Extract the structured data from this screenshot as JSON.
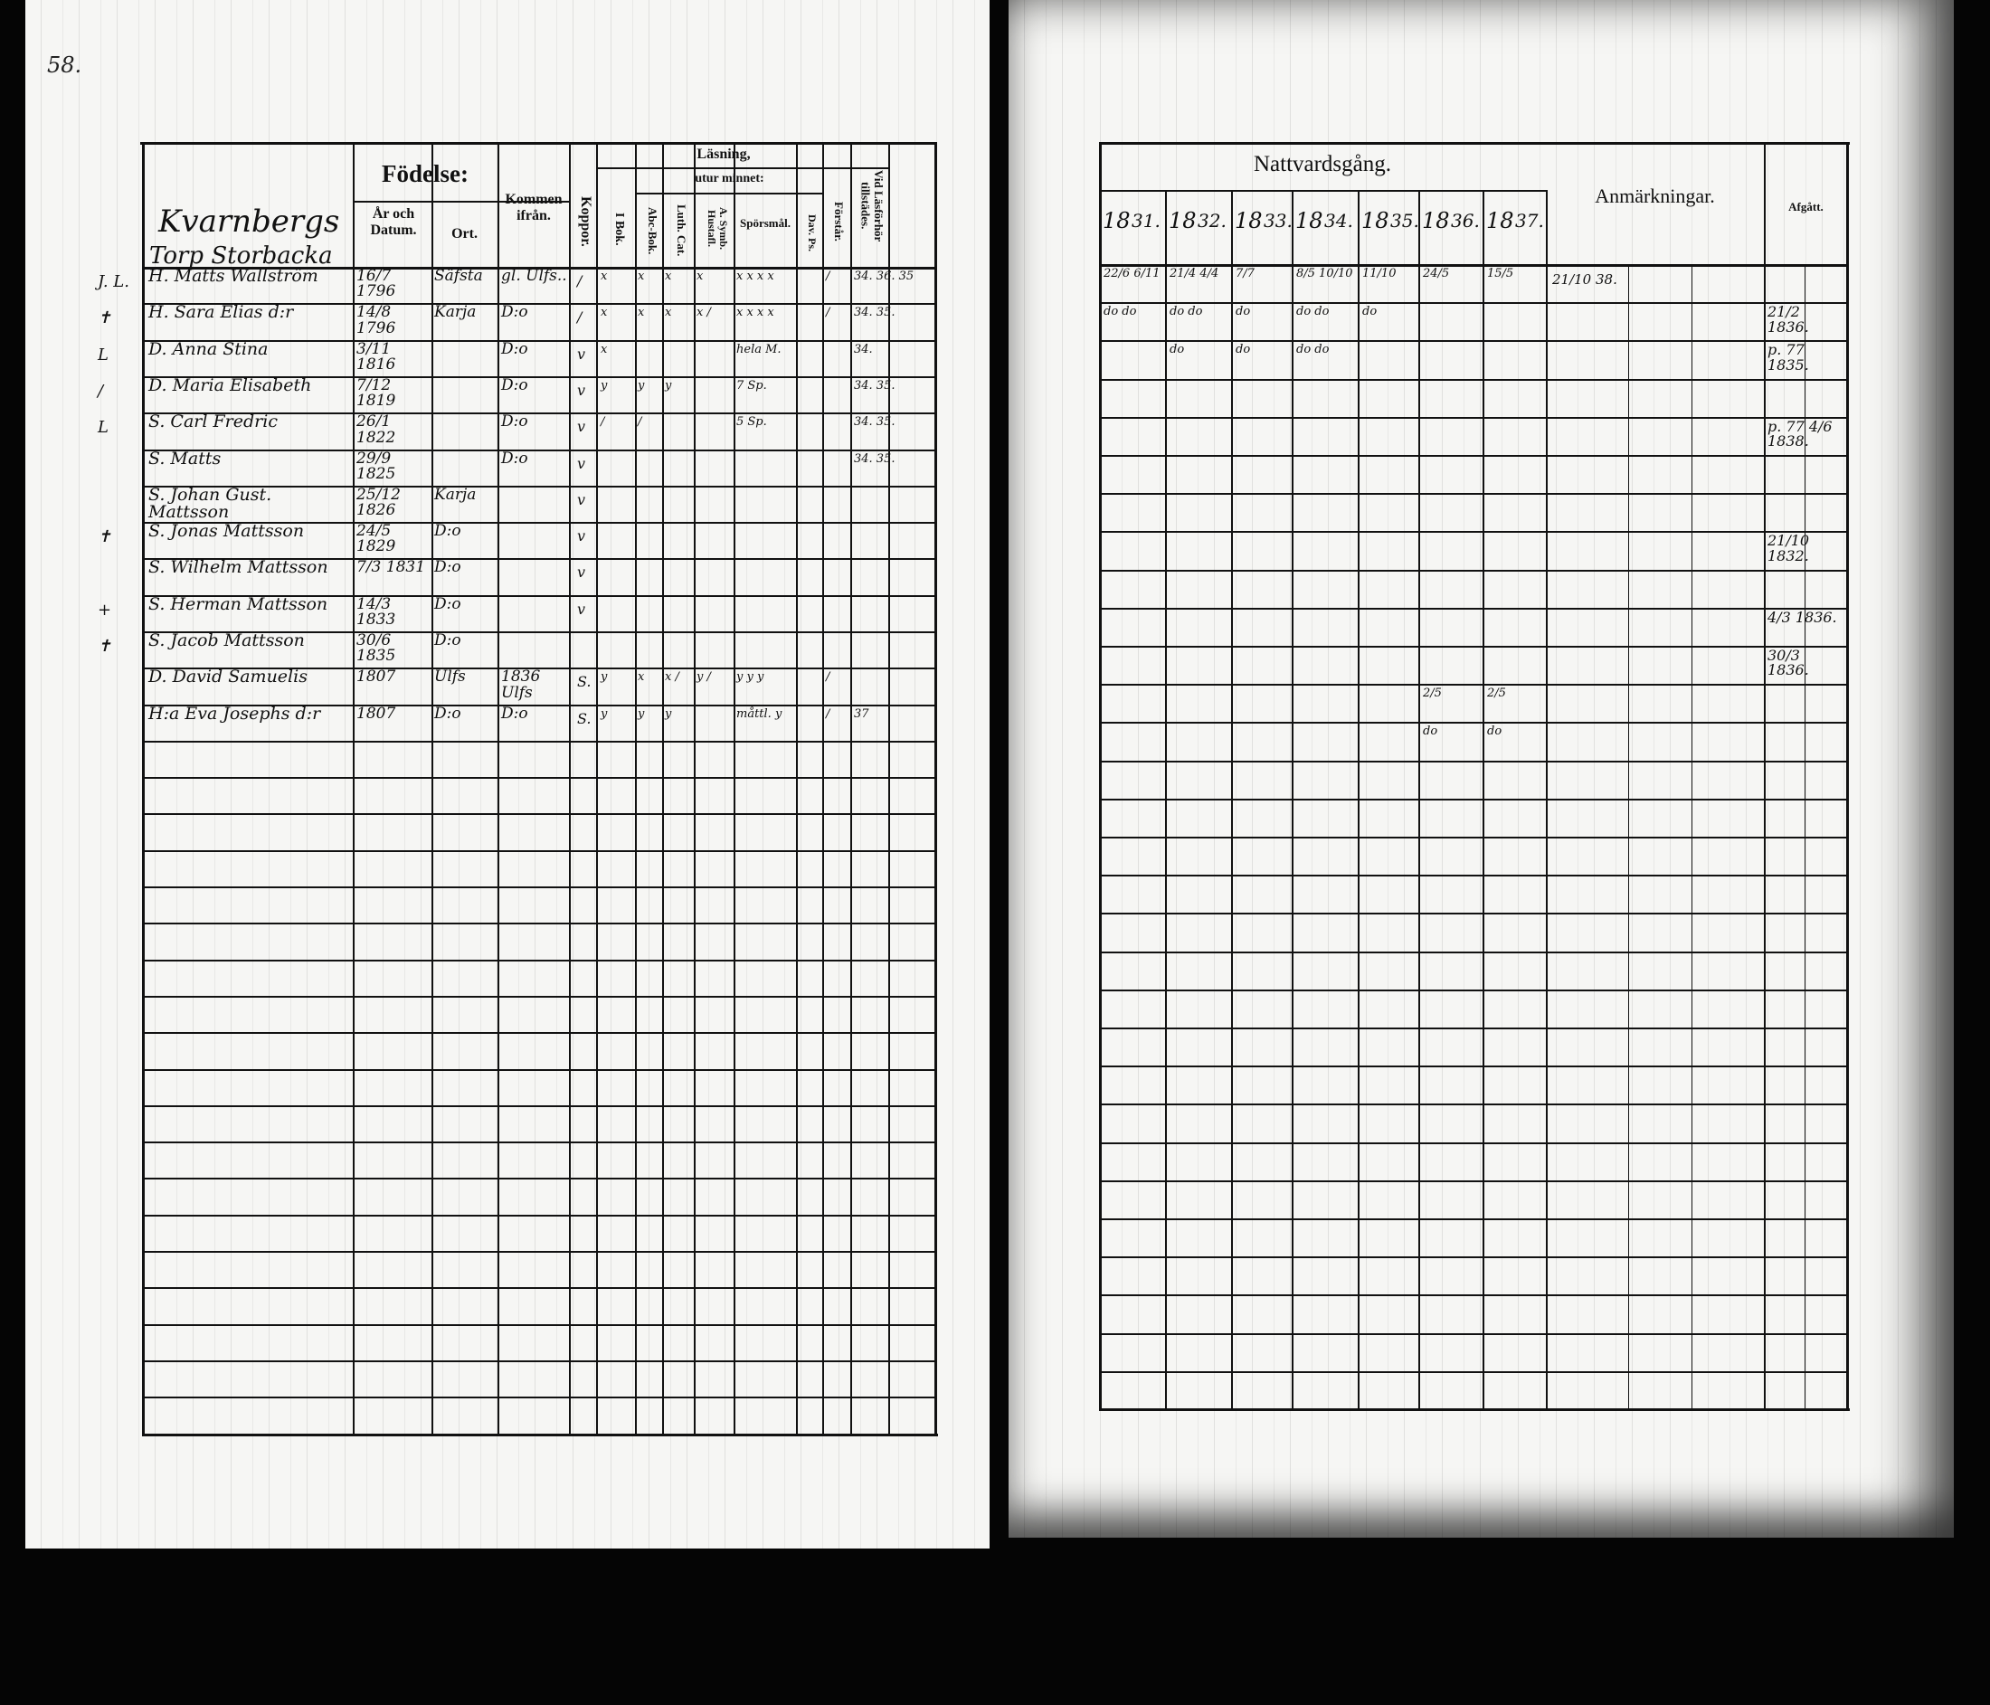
{
  "page_number": "58.",
  "left": {
    "title_line1": "Kvarnbergs",
    "title_line2": "Torp Storbacka",
    "headers": {
      "fodelse": "Födelse:",
      "ar_datum": "År och Datum.",
      "ort": "Ort.",
      "kommen": "Kommen ifrån.",
      "koppor": "Koppor.",
      "lasning": "Läsning,",
      "utur_minnet": "utur minnet:",
      "i_bok": "I Bok.",
      "abc_bok": "Abc-Bok.",
      "luth_cat": "Luth. Cat.",
      "symb": "A. Symb. Hustafl.",
      "sporsmal": "Spörsmål.",
      "dav_ps": "Dav. Ps.",
      "forstar": "Förstår.",
      "vid_lasforhor": "Vid Läsförhör tillstädes."
    },
    "rows": [
      {
        "mark": "J. L.",
        "name": "H. Matts Wallström",
        "date": "16/7 1796",
        "ort": "Säfsta",
        "from": "gl. Ulfs..",
        "koppor": "/",
        "ibok": "x",
        "abc": "x",
        "luth": "x",
        "symb": "x",
        "spors": "x x x x",
        "forst": "/",
        "vid": "34. 36. 35"
      },
      {
        "mark": "✝",
        "name": "H. Sara Elias d:r",
        "date": "14/8 1796",
        "ort": "Karja",
        "from": "D:o",
        "koppor": "/",
        "ibok": "x",
        "abc": "x",
        "luth": "x",
        "symb": "x /",
        "spors": "x x x x",
        "forst": "/",
        "vid": "34. 35."
      },
      {
        "mark": "L",
        "name": "D. Anna Stina",
        "date": "3/11 1816",
        "ort": "",
        "from": "D:o",
        "koppor": "v",
        "ibok": "x",
        "abc": "",
        "luth": "",
        "symb": "",
        "spors": "hela M.",
        "forst": "",
        "vid": "34."
      },
      {
        "mark": "/",
        "name": "D. Maria Elisabeth",
        "date": "7/12 1819",
        "ort": "",
        "from": "D:o",
        "koppor": "v",
        "ibok": "y",
        "abc": "y",
        "luth": "y",
        "symb": "",
        "spors": "7 Sp.",
        "forst": "",
        "vid": "34. 35."
      },
      {
        "mark": "L",
        "name": "S. Carl Fredric",
        "date": "26/1 1822",
        "ort": "",
        "from": "D:o",
        "koppor": "v",
        "ibok": "/",
        "abc": "/",
        "luth": "",
        "symb": "",
        "spors": "5 Sp.",
        "forst": "",
        "vid": "34. 35."
      },
      {
        "mark": "",
        "name": "S. Matts",
        "date": "29/9 1825",
        "ort": "",
        "from": "D:o",
        "koppor": "v",
        "ibok": "",
        "abc": "",
        "luth": "",
        "symb": "",
        "spors": "",
        "forst": "",
        "vid": "34. 35."
      },
      {
        "mark": "",
        "name": "S. Johan Gust. Mattsson",
        "date": "25/12 1826",
        "ort": "Karja",
        "from": "",
        "koppor": "v",
        "ibok": "",
        "abc": "",
        "luth": "",
        "symb": "",
        "spors": "",
        "forst": "",
        "vid": ""
      },
      {
        "mark": "✝",
        "name": "S. Jonas Mattsson",
        "date": "24/5 1829",
        "ort": "D:o",
        "from": "",
        "koppor": "v",
        "ibok": "",
        "abc": "",
        "luth": "",
        "symb": "",
        "spors": "",
        "forst": "",
        "vid": ""
      },
      {
        "mark": "",
        "name": "S. Wilhelm Mattsson",
        "date": "7/3 1831",
        "ort": "D:o",
        "from": "",
        "koppor": "v",
        "ibok": "",
        "abc": "",
        "luth": "",
        "symb": "",
        "spors": "",
        "forst": "",
        "vid": ""
      },
      {
        "mark": "+",
        "name": "S. Herman Mattsson",
        "date": "14/3 1833",
        "ort": "D:o",
        "from": "",
        "koppor": "v",
        "ibok": "",
        "abc": "",
        "luth": "",
        "symb": "",
        "spors": "",
        "forst": "",
        "vid": ""
      },
      {
        "mark": "✝",
        "name": "S. Jacob Mattsson",
        "date": "30/6 1835",
        "ort": "D:o",
        "from": "",
        "koppor": "",
        "ibok": "",
        "abc": "",
        "luth": "",
        "symb": "",
        "spors": "",
        "forst": "",
        "vid": ""
      },
      {
        "mark": "",
        "name": "D. David Samuelis",
        "date": "1807",
        "ort": "Ulfs",
        "from": "1836 Ulfs",
        "koppor": "S.",
        "ibok": "y",
        "abc": "x",
        "luth": "x /",
        "symb": "y /",
        "spors": "y y y",
        "forst": "/",
        "vid": ""
      },
      {
        "mark": "",
        "name": "H:a Eva Josephs d:r",
        "date": "1807",
        "ort": "D:o",
        "from": "D:o",
        "koppor": "S.",
        "ibok": "y",
        "abc": "y",
        "luth": "y",
        "symb": "",
        "spors": "måttl. y",
        "forst": "/",
        "vid": "37"
      }
    ]
  },
  "right": {
    "title": "Nattvardsgång.",
    "year_prefix": "18",
    "years": [
      "31.",
      "32.",
      "33.",
      "34.",
      "35.",
      "36.",
      "37."
    ],
    "anmarkningar": "Anmärkningar.",
    "afgatt": "Afgått.",
    "rows": [
      {
        "c": [
          "22/6  6/11",
          "21/4  4/4",
          "7/7",
          "8/5  10/10",
          "11/10",
          "24/5",
          "15/5"
        ],
        "anm": "21/10 38.",
        "afg": ""
      },
      {
        "c": [
          "do  do",
          "do  do",
          "do",
          "do  do",
          "do",
          "",
          ""
        ],
        "anm": "",
        "afg": "21/2 1836."
      },
      {
        "c": [
          "",
          "do",
          "do",
          "do  do",
          "",
          "",
          ""
        ],
        "anm": "",
        "afg": "p. 77 1835."
      },
      {
        "c": [
          "",
          "",
          "",
          "",
          "",
          "",
          ""
        ],
        "anm": "",
        "afg": ""
      },
      {
        "c": [
          "",
          "",
          "",
          "",
          "",
          "",
          ""
        ],
        "anm": "",
        "afg": "p. 77 4/6 1838."
      },
      {
        "c": [
          "",
          "",
          "",
          "",
          "",
          "",
          ""
        ],
        "anm": "",
        "afg": ""
      },
      {
        "c": [
          "",
          "",
          "",
          "",
          "",
          "",
          ""
        ],
        "anm": "",
        "afg": ""
      },
      {
        "c": [
          "",
          "",
          "",
          "",
          "",
          "",
          ""
        ],
        "anm": "",
        "afg": "21/10 1832."
      },
      {
        "c": [
          "",
          "",
          "",
          "",
          "",
          "",
          ""
        ],
        "anm": "",
        "afg": ""
      },
      {
        "c": [
          "",
          "",
          "",
          "",
          "",
          "",
          ""
        ],
        "anm": "",
        "afg": "4/3 1836."
      },
      {
        "c": [
          "",
          "",
          "",
          "",
          "",
          "",
          ""
        ],
        "anm": "",
        "afg": "30/3 1836."
      },
      {
        "c": [
          "",
          "",
          "",
          "",
          "",
          "2/5",
          "2/5"
        ],
        "anm": "",
        "afg": ""
      },
      {
        "c": [
          "",
          "",
          "",
          "",
          "",
          "do",
          "do"
        ],
        "anm": "",
        "afg": ""
      }
    ]
  }
}
